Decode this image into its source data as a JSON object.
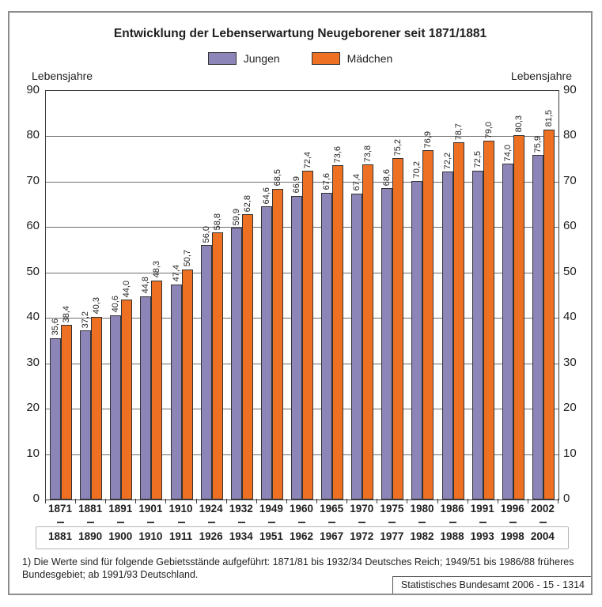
{
  "title": "Entwicklung der Lebenserwartung Neugeborener seit 1871/1881",
  "legend": {
    "jungen": "Jungen",
    "maedchen": "Mädchen"
  },
  "y_axis": {
    "label_left": "Lebensjahre",
    "label_right": "Lebensjahre"
  },
  "chart_data": {
    "type": "bar",
    "categories": [
      {
        "from": "1871",
        "to": "1881"
      },
      {
        "from": "1881",
        "to": "1890"
      },
      {
        "from": "1891",
        "to": "1900"
      },
      {
        "from": "1901",
        "to": "1910"
      },
      {
        "from": "1910",
        "to": "1911"
      },
      {
        "from": "1924",
        "to": "1926"
      },
      {
        "from": "1932",
        "to": "1934"
      },
      {
        "from": "1949",
        "to": "1951"
      },
      {
        "from": "1960",
        "to": "1962"
      },
      {
        "from": "1965",
        "to": "1967"
      },
      {
        "from": "1970",
        "to": "1972"
      },
      {
        "from": "1975",
        "to": "1977"
      },
      {
        "from": "1980",
        "to": "1982"
      },
      {
        "from": "1986",
        "to": "1988"
      },
      {
        "from": "1991",
        "to": "1993"
      },
      {
        "from": "1996",
        "to": "1998"
      },
      {
        "from": "2002",
        "to": "2004"
      }
    ],
    "series": [
      {
        "name": "Jungen",
        "color": "#8b85b8",
        "values": [
          35.6,
          37.2,
          40.6,
          44.8,
          47.4,
          56.0,
          59.9,
          64.6,
          66.9,
          67.6,
          67.4,
          68.6,
          70.2,
          72.2,
          72.5,
          74.0,
          75.9
        ]
      },
      {
        "name": "Mädchen",
        "color": "#ee7023",
        "values": [
          38.4,
          40.3,
          44.0,
          48.3,
          50.7,
          58.8,
          62.8,
          68.5,
          72.4,
          73.6,
          73.8,
          75.2,
          76.9,
          78.7,
          79.0,
          80.3,
          81.5
        ]
      }
    ],
    "title": "Entwicklung der Lebenserwartung Neugeborener seit 1871/1881",
    "xlabel": "",
    "ylabel": "Lebensjahre",
    "ylim": [
      0,
      90
    ],
    "yticks": [
      0,
      10,
      20,
      30,
      40,
      50,
      60,
      70,
      80,
      90
    ],
    "grid": true,
    "legend_position": "top-center",
    "decimal_separator": ",",
    "value_labels_rotated": true
  },
  "footnote": "1) Die Werte sind für folgende Gebietsstände aufgeführt: 1871/81 bis 1932/34 Deutsches Reich; 1949/51 bis 1986/88 früheres Bundesgebiet; ab 1991/93 Deutschland.",
  "source": "Statistisches Bundesamt 2006 - 15 - 1314"
}
